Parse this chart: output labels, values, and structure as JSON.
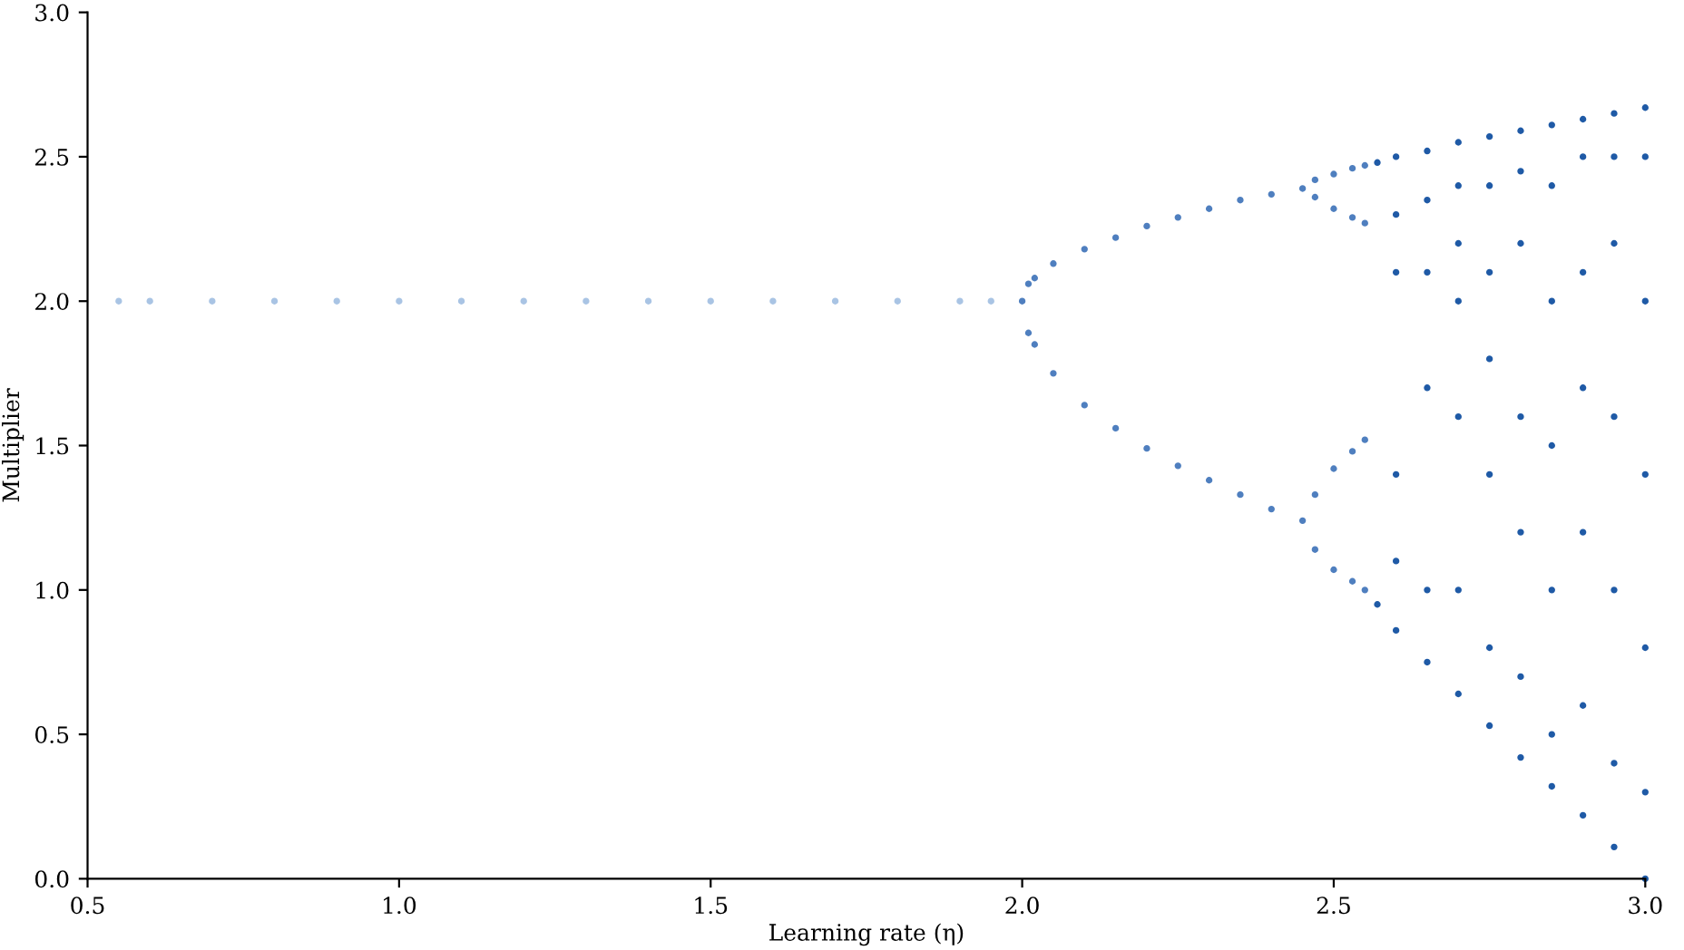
{
  "chart_data": {
    "type": "scatter",
    "xlabel": "Learning rate (η)",
    "ylabel": "Multiplier",
    "xlim": [
      0.5,
      3.0
    ],
    "ylim": [
      0,
      3.0
    ],
    "xticks": [
      0.5,
      {
        "value": 1.0,
        "label": "1.0"
      },
      1.5,
      {
        "value": 2.0,
        "label": "2.0"
      },
      2.5,
      {
        "value": 3.0,
        "label": "3.0"
      }
    ],
    "yticks": [
      {
        "value": 0,
        "label": "0.0"
      },
      0.5,
      {
        "value": 1.0,
        "label": "1.0"
      },
      1.5,
      {
        "value": 2.0,
        "label": "2.0"
      },
      2.5,
      {
        "value": 3.0,
        "label": "3.0"
      }
    ],
    "grid": false,
    "marker": "circle",
    "series": [
      {
        "color": "#a9c4e4",
        "x": [
          0.55,
          0.6,
          0.7,
          0.8,
          0.9,
          1.0,
          1.1,
          1.2,
          1.3,
          1.4,
          1.5,
          1.6,
          1.7,
          1.8,
          1.9,
          1.95
        ],
        "values": [
          2.0,
          2.0,
          2.0,
          2.0,
          2.0,
          2.0,
          2.0,
          2.0,
          2.0,
          2.0,
          2.0,
          2.0,
          2.0,
          2.0,
          2.0,
          2.0
        ]
      },
      {
        "color": "#4f7fbf",
        "x": [
          2.0,
          2.01,
          2.02,
          2.05,
          2.1,
          2.15,
          2.2,
          2.25,
          2.3,
          2.35,
          2.4,
          2.45,
          2.47,
          2.5,
          2.53,
          2.55,
          2.47,
          2.5,
          2.53,
          2.55
        ],
        "values": [
          2.0,
          2.06,
          2.08,
          2.13,
          2.18,
          2.22,
          2.26,
          2.29,
          2.32,
          2.35,
          2.37,
          2.39,
          2.42,
          2.44,
          2.46,
          2.47,
          2.36,
          2.32,
          2.29,
          2.27
        ]
      },
      {
        "color": "#4f7fbf",
        "x": [
          2.01,
          2.02,
          2.05,
          2.1,
          2.15,
          2.2,
          2.25,
          2.3,
          2.35,
          2.4,
          2.45,
          2.47,
          2.5,
          2.53,
          2.55,
          2.47,
          2.5,
          2.53,
          2.55
        ],
        "values": [
          1.89,
          1.85,
          1.75,
          1.64,
          1.56,
          1.49,
          1.43,
          1.38,
          1.33,
          1.28,
          1.24,
          1.33,
          1.42,
          1.48,
          1.52,
          1.14,
          1.07,
          1.03,
          1.0
        ]
      },
      {
        "color": "#1f5aa6",
        "x": [
          2.57,
          2.6,
          2.65,
          2.7,
          2.75,
          2.8,
          2.85,
          2.9,
          2.95,
          3.0,
          2.57,
          2.6,
          2.65,
          2.7,
          2.75,
          2.8,
          2.85,
          2.9,
          2.95,
          3.0,
          2.6,
          2.6,
          2.6,
          2.6,
          2.65,
          2.65,
          2.65,
          2.65,
          2.7,
          2.7,
          2.7,
          2.7,
          2.7,
          2.75,
          2.75,
          2.75,
          2.75,
          2.75,
          2.8,
          2.8,
          2.8,
          2.8,
          2.8,
          2.85,
          2.85,
          2.85,
          2.85,
          2.85,
          2.9,
          2.9,
          2.9,
          2.9,
          2.9,
          2.95,
          2.95,
          2.95,
          2.95,
          2.95,
          3.0,
          3.0,
          3.0,
          3.0,
          3.0
        ],
        "values": [
          2.48,
          2.5,
          2.52,
          2.55,
          2.57,
          2.59,
          2.61,
          2.63,
          2.65,
          2.67,
          0.95,
          0.86,
          0.75,
          0.64,
          0.53,
          0.42,
          0.32,
          0.22,
          0.11,
          0.0,
          2.3,
          2.1,
          1.4,
          1.1,
          2.35,
          2.1,
          1.7,
          1.0,
          2.4,
          2.2,
          2.0,
          1.6,
          1.0,
          2.4,
          2.1,
          1.8,
          1.4,
          0.8,
          2.45,
          2.2,
          1.6,
          1.2,
          0.7,
          2.4,
          2.0,
          1.5,
          1.0,
          0.5,
          2.5,
          2.1,
          1.7,
          1.2,
          0.6,
          2.5,
          2.2,
          1.6,
          1.0,
          0.4,
          2.5,
          2.0,
          1.4,
          0.8,
          0.3
        ]
      }
    ]
  }
}
